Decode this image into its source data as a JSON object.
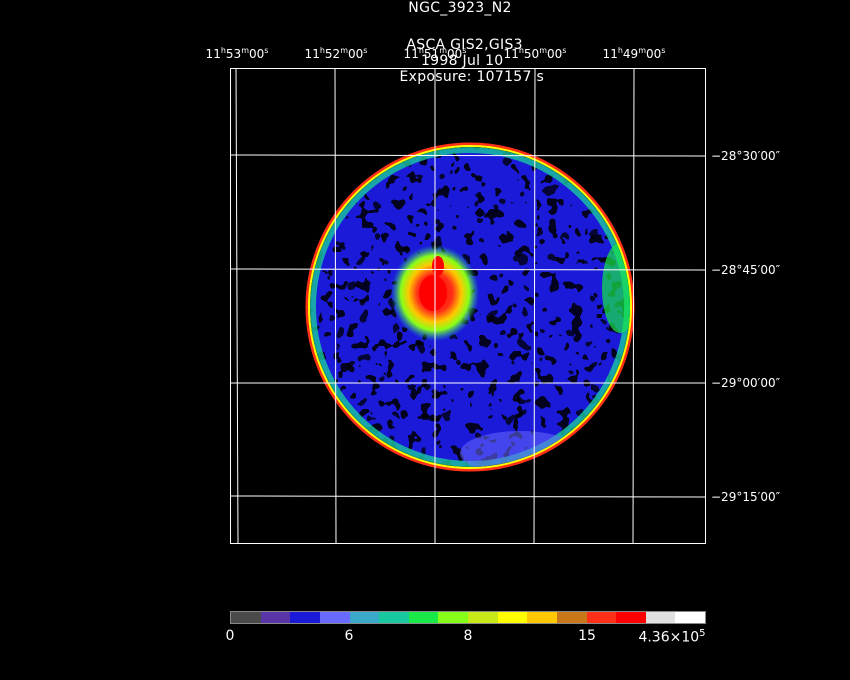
{
  "header": {
    "object": "NGC_3923_N2",
    "instrument": "ASCA GIS2,GIS3",
    "date": "1998 Jul 10",
    "exposure": "Exposure: 107157 s"
  },
  "ra_axis": [
    {
      "h": "11",
      "m": "53",
      "s": "00"
    },
    {
      "h": "11",
      "m": "52",
      "s": "00"
    },
    {
      "h": "11",
      "m": "51",
      "s": "00"
    },
    {
      "h": "11",
      "m": "50",
      "s": "00"
    },
    {
      "h": "11",
      "m": "49",
      "s": "00"
    }
  ],
  "dec_axis": [
    "−28°30′00″",
    "−28°45′00″",
    "−29°00′00″",
    "−29°15′00″"
  ],
  "colorbar": {
    "colors": [
      "#4a4a4a",
      "#5a35a8",
      "#1a1ad8",
      "#6a6aff",
      "#3aa8c8",
      "#18c8a0",
      "#18e848",
      "#88ff18",
      "#c8e818",
      "#ffff00",
      "#ffc800",
      "#c87818",
      "#ff3018",
      "#ff0000",
      "#e0e0e0",
      "#ffffff"
    ],
    "labels": [
      "0",
      "6",
      "8",
      "15",
      "4.36×10"
    ],
    "label_exp": "5"
  }
}
